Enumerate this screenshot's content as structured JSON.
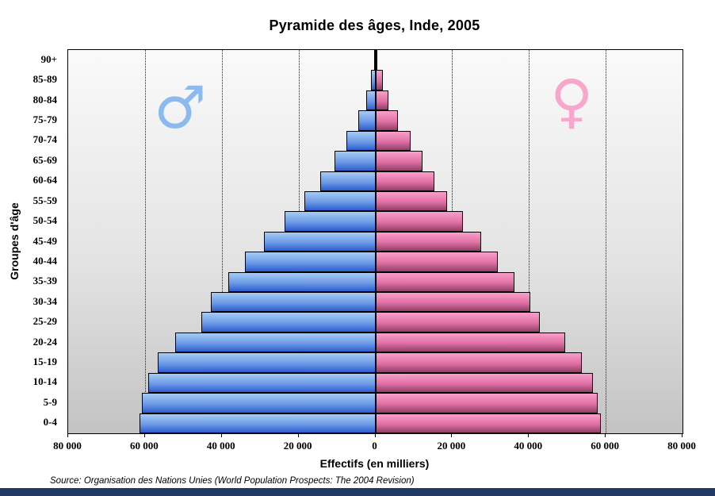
{
  "title": "Pyramide des âges, Inde, 2005",
  "source": "Source: Organisation des Nations Unies (World Population Prospects: The 2004 Revision)",
  "symbols": {
    "male": "♂",
    "female": "♀"
  },
  "colors": {
    "male_bar_top": "#a6ccf4",
    "male_bar_bottom": "#2b5dcf",
    "female_bar_top": "#f89fcb",
    "female_bar_bottom": "#8e3f66",
    "male_symbol": "#8cb9ee",
    "female_symbol": "#f9a6cd",
    "plot_bg_top": "#fafafa",
    "plot_bg_bottom": "#c3c3c3",
    "footer_bar": "#1f3864",
    "bar_border": "#000000"
  },
  "chart_data": {
    "type": "bar",
    "subtype": "population-pyramid",
    "title": "Pyramide des âges, Inde, 2005",
    "xlabel": "Effectifs (en milliers)",
    "ylabel": "Groupes d'âge",
    "grid": "vertical dotted gridlines every 20 000, both sides",
    "legend_position": "in-plot gender symbols (male left, female right)",
    "xlim_thousands": [
      -80000,
      80000
    ],
    "x_tick_values": [
      -80000,
      -60000,
      -40000,
      -20000,
      0,
      20000,
      40000,
      60000,
      80000
    ],
    "x_tick_labels": [
      "80 000",
      "60 000",
      "40 000",
      "20 000",
      "0",
      "20 000",
      "40 000",
      "60 000",
      "80 000"
    ],
    "categories_top_to_bottom": [
      "90+",
      "85-89",
      "80-84",
      "75-79",
      "70-74",
      "65-69",
      "60-64",
      "55-59",
      "50-54",
      "45-49",
      "40-44",
      "35-39",
      "30-34",
      "25-29",
      "20-24",
      "15-19",
      "10-14",
      "5-9",
      "0-4"
    ],
    "units": "thousands of people",
    "series": [
      {
        "name": "Hommes",
        "side": "left",
        "values_top_to_bottom": [
          300,
          1100,
          2300,
          4500,
          7600,
          10700,
          14300,
          18400,
          23600,
          29100,
          33900,
          38400,
          42800,
          45400,
          52200,
          56600,
          59200,
          60900,
          61500
        ]
      },
      {
        "name": "Femmes",
        "side": "right",
        "values_top_to_bottom": [
          400,
          1900,
          3500,
          5800,
          9200,
          12200,
          15300,
          18700,
          22800,
          27600,
          31900,
          36200,
          40400,
          42800,
          49500,
          53700,
          56600,
          57900,
          58800
        ]
      }
    ]
  }
}
